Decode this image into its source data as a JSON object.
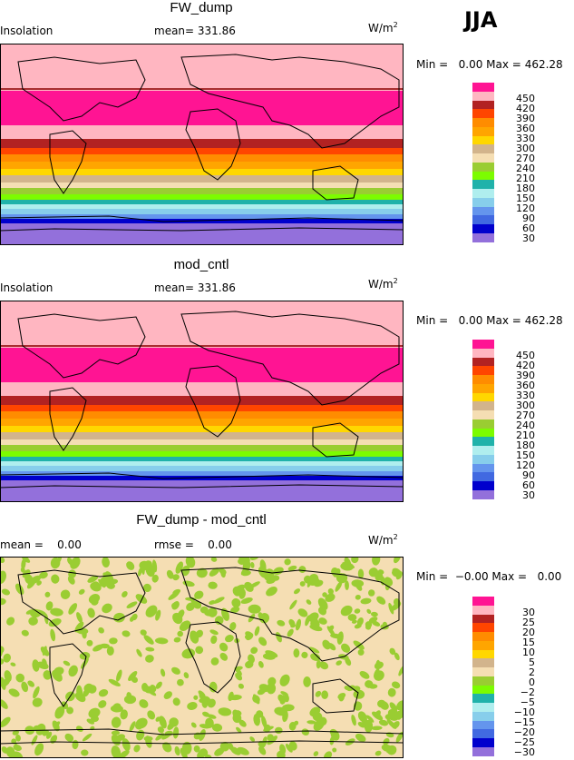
{
  "season": "JJA",
  "units_base": "W/m",
  "units_exp": "2",
  "panels": [
    {
      "title": "FW_dump",
      "variable": "Insolation",
      "stat_text": "mean= 331.86",
      "min_label": "Min =",
      "min_value": "0.00",
      "max_label": "Max =",
      "max_value": "462.28"
    },
    {
      "title": "mod_cntl",
      "variable": "Insolation",
      "stat_text": "mean= 331.86",
      "min_label": "Min =",
      "min_value": "0.00",
      "max_label": "Max =",
      "max_value": "462.28"
    },
    {
      "title": "FW_dump - mod_cntl",
      "variable": "",
      "stat_text": "mean =    0.00",
      "stat_text2": "rmse =    0.00",
      "min_label": "Min =",
      "min_value": "−0.00",
      "max_label": "Max =",
      "max_value": "0.00"
    }
  ],
  "colorbar_main": {
    "ticks": [
      "450",
      "420",
      "390",
      "360",
      "330",
      "300",
      "270",
      "240",
      "210",
      "180",
      "150",
      "120",
      "90",
      "60",
      "30"
    ],
    "colors": [
      "#ff1493",
      "#ffb6c1",
      "#b22222",
      "#ff4500",
      "#ff8c00",
      "#ffa500",
      "#ffd700",
      "#d2b48c",
      "#f5deb3",
      "#9acd32",
      "#7cfc00",
      "#20b2aa",
      "#afeeee",
      "#87ceeb",
      "#6495ed",
      "#4169e1",
      "#0000cd",
      "#9370db"
    ]
  },
  "colorbar_diff": {
    "ticks": [
      "30",
      "25",
      "20",
      "15",
      "10",
      "5",
      "2",
      "0",
      "−2",
      "−5",
      "−10",
      "−15",
      "−20",
      "−25",
      "−30"
    ],
    "colors": [
      "#ff1493",
      "#ffb6c1",
      "#b22222",
      "#ff4500",
      "#ff8c00",
      "#ffa500",
      "#ffd700",
      "#d2b48c",
      "#f5deb3",
      "#9acd32",
      "#7cfc00",
      "#20b2aa",
      "#afeeee",
      "#87ceeb",
      "#6495ed",
      "#4169e1",
      "#0000cd",
      "#9370db"
    ]
  },
  "chart_data": [
    {
      "type": "heatmap",
      "title": "FW_dump",
      "field": "Insolation",
      "mean": 331.86,
      "min": 0.0,
      "max": 462.28,
      "levels": [
        30,
        60,
        90,
        120,
        150,
        180,
        210,
        240,
        270,
        300,
        330,
        360,
        390,
        420,
        450
      ],
      "zonal_bands_top_to_bottom": [
        "pink",
        "magenta",
        "pink",
        "darkred",
        "red",
        "orange",
        "gold",
        "tan",
        "wheat",
        "yellowgreen",
        "green",
        "lightgreen",
        "teal",
        "lightblue",
        "skyblue",
        "cornflowerblue",
        "blue",
        "mediumpurple"
      ]
    },
    {
      "type": "heatmap",
      "title": "mod_cntl",
      "field": "Insolation",
      "mean": 331.86,
      "min": 0.0,
      "max": 462.28,
      "levels": [
        30,
        60,
        90,
        120,
        150,
        180,
        210,
        240,
        270,
        300,
        330,
        360,
        390,
        420,
        450
      ]
    },
    {
      "type": "heatmap",
      "title": "FW_dump - mod_cntl",
      "mean": 0.0,
      "rmse": 0.0,
      "min": -0.0,
      "max": 0.0,
      "levels": [
        -30,
        -25,
        -20,
        -15,
        -10,
        -5,
        -2,
        0,
        2,
        5,
        10,
        15,
        20,
        25,
        30
      ],
      "pattern": "speckled green patches (-2 to 0) on wheat background (0 to 2)"
    }
  ]
}
